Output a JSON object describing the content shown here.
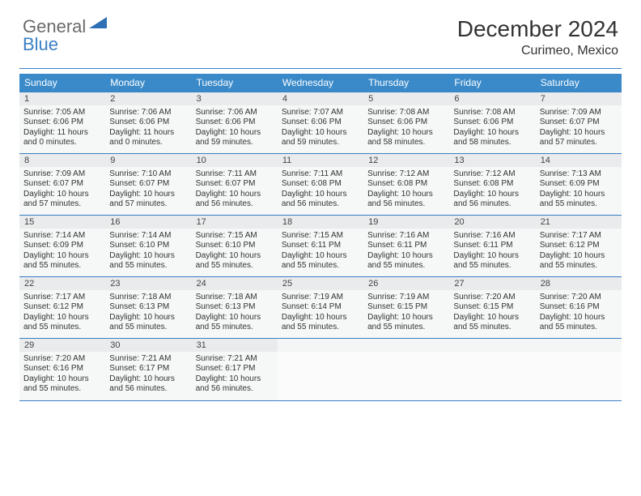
{
  "logo": {
    "text1": "General",
    "text2": "Blue",
    "color1": "#6a6a6a",
    "color2": "#3a7fc4",
    "shape_color": "#2f6fb3"
  },
  "header": {
    "month_title": "December 2024",
    "location": "Curimeo, Mexico"
  },
  "styling": {
    "header_bar_color": "#3a8ac9",
    "header_text_color": "#ffffff",
    "accent_line_color": "#3a7fc4",
    "daynum_bg": "#e9ebec",
    "cell_bg": "#f6f7f7",
    "empty_bg": "#fbfbfb",
    "body_font_size": 10,
    "header_font_size": 12,
    "title_font_size": 28,
    "location_font_size": 16
  },
  "weekdays": [
    "Sunday",
    "Monday",
    "Tuesday",
    "Wednesday",
    "Thursday",
    "Friday",
    "Saturday"
  ],
  "days": [
    {
      "n": 1,
      "sr": "7:05 AM",
      "ss": "6:06 PM",
      "dl": "11 hours and 0 minutes."
    },
    {
      "n": 2,
      "sr": "7:06 AM",
      "ss": "6:06 PM",
      "dl": "11 hours and 0 minutes."
    },
    {
      "n": 3,
      "sr": "7:06 AM",
      "ss": "6:06 PM",
      "dl": "10 hours and 59 minutes."
    },
    {
      "n": 4,
      "sr": "7:07 AM",
      "ss": "6:06 PM",
      "dl": "10 hours and 59 minutes."
    },
    {
      "n": 5,
      "sr": "7:08 AM",
      "ss": "6:06 PM",
      "dl": "10 hours and 58 minutes."
    },
    {
      "n": 6,
      "sr": "7:08 AM",
      "ss": "6:06 PM",
      "dl": "10 hours and 58 minutes."
    },
    {
      "n": 7,
      "sr": "7:09 AM",
      "ss": "6:07 PM",
      "dl": "10 hours and 57 minutes."
    },
    {
      "n": 8,
      "sr": "7:09 AM",
      "ss": "6:07 PM",
      "dl": "10 hours and 57 minutes."
    },
    {
      "n": 9,
      "sr": "7:10 AM",
      "ss": "6:07 PM",
      "dl": "10 hours and 57 minutes."
    },
    {
      "n": 10,
      "sr": "7:11 AM",
      "ss": "6:07 PM",
      "dl": "10 hours and 56 minutes."
    },
    {
      "n": 11,
      "sr": "7:11 AM",
      "ss": "6:08 PM",
      "dl": "10 hours and 56 minutes."
    },
    {
      "n": 12,
      "sr": "7:12 AM",
      "ss": "6:08 PM",
      "dl": "10 hours and 56 minutes."
    },
    {
      "n": 13,
      "sr": "7:12 AM",
      "ss": "6:08 PM",
      "dl": "10 hours and 56 minutes."
    },
    {
      "n": 14,
      "sr": "7:13 AM",
      "ss": "6:09 PM",
      "dl": "10 hours and 55 minutes."
    },
    {
      "n": 15,
      "sr": "7:14 AM",
      "ss": "6:09 PM",
      "dl": "10 hours and 55 minutes."
    },
    {
      "n": 16,
      "sr": "7:14 AM",
      "ss": "6:10 PM",
      "dl": "10 hours and 55 minutes."
    },
    {
      "n": 17,
      "sr": "7:15 AM",
      "ss": "6:10 PM",
      "dl": "10 hours and 55 minutes."
    },
    {
      "n": 18,
      "sr": "7:15 AM",
      "ss": "6:11 PM",
      "dl": "10 hours and 55 minutes."
    },
    {
      "n": 19,
      "sr": "7:16 AM",
      "ss": "6:11 PM",
      "dl": "10 hours and 55 minutes."
    },
    {
      "n": 20,
      "sr": "7:16 AM",
      "ss": "6:11 PM",
      "dl": "10 hours and 55 minutes."
    },
    {
      "n": 21,
      "sr": "7:17 AM",
      "ss": "6:12 PM",
      "dl": "10 hours and 55 minutes."
    },
    {
      "n": 22,
      "sr": "7:17 AM",
      "ss": "6:12 PM",
      "dl": "10 hours and 55 minutes."
    },
    {
      "n": 23,
      "sr": "7:18 AM",
      "ss": "6:13 PM",
      "dl": "10 hours and 55 minutes."
    },
    {
      "n": 24,
      "sr": "7:18 AM",
      "ss": "6:13 PM",
      "dl": "10 hours and 55 minutes."
    },
    {
      "n": 25,
      "sr": "7:19 AM",
      "ss": "6:14 PM",
      "dl": "10 hours and 55 minutes."
    },
    {
      "n": 26,
      "sr": "7:19 AM",
      "ss": "6:15 PM",
      "dl": "10 hours and 55 minutes."
    },
    {
      "n": 27,
      "sr": "7:20 AM",
      "ss": "6:15 PM",
      "dl": "10 hours and 55 minutes."
    },
    {
      "n": 28,
      "sr": "7:20 AM",
      "ss": "6:16 PM",
      "dl": "10 hours and 55 minutes."
    },
    {
      "n": 29,
      "sr": "7:20 AM",
      "ss": "6:16 PM",
      "dl": "10 hours and 55 minutes."
    },
    {
      "n": 30,
      "sr": "7:21 AM",
      "ss": "6:17 PM",
      "dl": "10 hours and 56 minutes."
    },
    {
      "n": 31,
      "sr": "7:21 AM",
      "ss": "6:17 PM",
      "dl": "10 hours and 56 minutes."
    }
  ],
  "labels": {
    "sunrise": "Sunrise:",
    "sunset": "Sunset:",
    "daylight": "Daylight:"
  },
  "layout": {
    "first_weekday_index": 0,
    "total_cells": 35
  }
}
